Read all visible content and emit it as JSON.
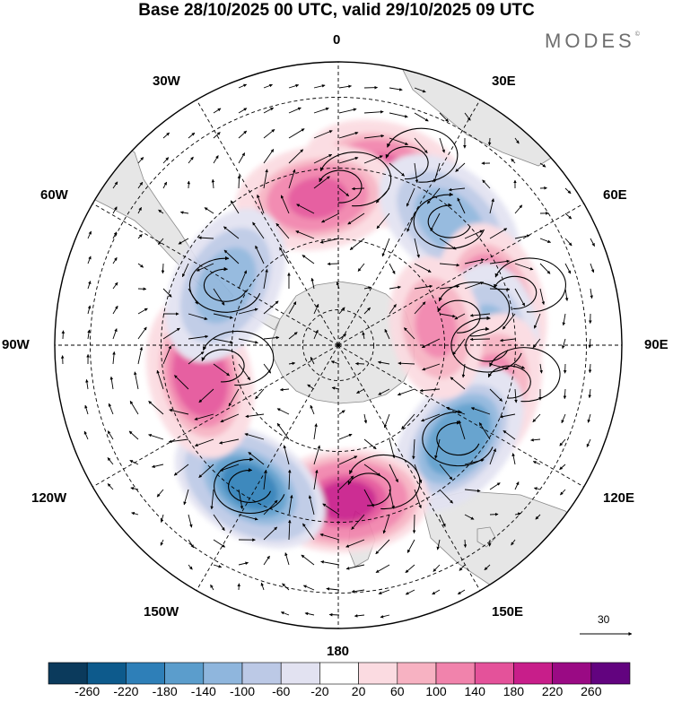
{
  "title": "Base 28/10/2025 00 UTC, valid 29/10/2025 09 UTC",
  "logo": "MODES",
  "logo_mark": "©",
  "meridian_labels": {
    "m0": "0",
    "m30e": "30E",
    "m60e": "60E",
    "m90e": "90E",
    "m120e": "120E",
    "m150e": "150E",
    "m180": "180",
    "m150w": "150W",
    "m120w": "120W",
    "m90w": "90W",
    "m60w": "60W",
    "m30w": "30W"
  },
  "reference_vector": {
    "value": "30"
  },
  "colorbar": {
    "colors": [
      "#0b3a5c",
      "#0d5a8c",
      "#2e7fb8",
      "#5b9dcc",
      "#8fb6dd",
      "#bcc9e6",
      "#e2e2f1",
      "#ffffff",
      "#fbdbe1",
      "#f7b2c2",
      "#f183ac",
      "#e4529a",
      "#c81e8a",
      "#9a0a84",
      "#62037f"
    ],
    "ticks": [
      "-260",
      "-220",
      "-180",
      "-140",
      "-100",
      "-60",
      "-20",
      "20",
      "60",
      "100",
      "140",
      "180",
      "220",
      "260"
    ]
  },
  "anomaly_centers": [
    {
      "lon": 15,
      "lat": -40,
      "value": 160
    },
    {
      "lon": -8,
      "lat": -48,
      "value": 150
    },
    {
      "lon": 42,
      "lat": -43,
      "value": -140
    },
    {
      "lon": 75,
      "lat": -45,
      "value": 150
    },
    {
      "lon": 90,
      "lat": -48,
      "value": -140
    },
    {
      "lon": 108,
      "lat": -46,
      "value": 130
    },
    {
      "lon": 128,
      "lat": -47,
      "value": -180
    },
    {
      "lon": 177,
      "lat": -46,
      "value": 200
    },
    {
      "lon": -148,
      "lat": -43,
      "value": -200
    },
    {
      "lon": -103,
      "lat": -50,
      "value": 170
    },
    {
      "lon": -62,
      "lat": -54,
      "value": -140
    },
    {
      "lon": 80,
      "lat": -62,
      "value": 100
    }
  ]
}
